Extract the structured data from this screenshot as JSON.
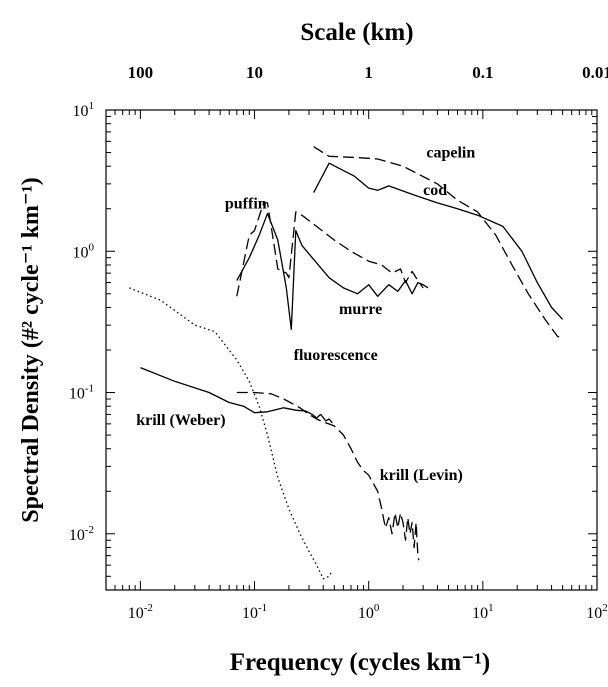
{
  "chart_data": {
    "type": "line",
    "title": "Scale (km)",
    "xlabel": "Frequency (cycles km⁻¹)",
    "ylabel": "Spectral Density (#² cycle⁻¹ km⁻¹)",
    "x_scale": "log",
    "y_scale": "log",
    "xlim": [
      0.005,
      100
    ],
    "ylim": [
      0.004,
      10
    ],
    "grid": false,
    "x_ticks": [
      {
        "value": 0.01,
        "base": "10",
        "exp": "-2"
      },
      {
        "value": 0.1,
        "base": "10",
        "exp": "-1"
      },
      {
        "value": 1,
        "base": "10",
        "exp": "0"
      },
      {
        "value": 10,
        "base": "10",
        "exp": "1"
      },
      {
        "value": 100,
        "base": "10",
        "exp": "2"
      }
    ],
    "y_ticks": [
      {
        "value": 0.01,
        "base": "10",
        "exp": "-2"
      },
      {
        "value": 0.1,
        "base": "10",
        "exp": "-1"
      },
      {
        "value": 1,
        "base": "10",
        "exp": "0"
      },
      {
        "value": 10,
        "base": "10",
        "exp": "1"
      }
    ],
    "top_axis_ticks": [
      {
        "label": "100",
        "freq": 0.01
      },
      {
        "label": "10",
        "freq": 0.1
      },
      {
        "label": "1",
        "freq": 1
      },
      {
        "label": "0.1",
        "freq": 10
      },
      {
        "label": "0.01",
        "freq": 100
      }
    ],
    "series": [
      {
        "name": "capelin",
        "style": "dashed",
        "label_pos": {
          "x": 3.2,
          "y": 4.6
        },
        "points": [
          [
            0.33,
            5.5
          ],
          [
            0.45,
            4.7
          ],
          [
            0.8,
            4.6
          ],
          [
            1.2,
            4.5
          ],
          [
            2,
            4.0
          ],
          [
            4,
            3.0
          ],
          [
            6,
            2.3
          ],
          [
            9,
            1.9
          ],
          [
            13,
            1.3
          ],
          [
            18,
            0.8
          ],
          [
            25,
            0.5
          ],
          [
            35,
            0.33
          ],
          [
            45,
            0.25
          ],
          [
            50,
            0.24
          ]
        ]
      },
      {
        "name": "cod",
        "style": "solid",
        "label_pos": {
          "x": 3.0,
          "y": 2.5
        },
        "points": [
          [
            0.33,
            2.6
          ],
          [
            0.45,
            4.2
          ],
          [
            0.75,
            3.4
          ],
          [
            1.0,
            2.8
          ],
          [
            1.2,
            2.7
          ],
          [
            1.5,
            2.9
          ],
          [
            2.5,
            2.5
          ],
          [
            4,
            2.2
          ],
          [
            6,
            2.0
          ],
          [
            9,
            1.8
          ],
          [
            15,
            1.5
          ],
          [
            22,
            1.0
          ],
          [
            30,
            0.6
          ],
          [
            40,
            0.4
          ],
          [
            50,
            0.33
          ]
        ]
      },
      {
        "name": "puffin",
        "style": "dashed",
        "label_pos": {
          "x": 0.055,
          "y": 2.0
        },
        "points": [
          [
            0.07,
            0.48
          ],
          [
            0.09,
            1.3
          ],
          [
            0.1,
            1.4
          ],
          [
            0.12,
            2.2
          ],
          [
            0.13,
            2.2
          ],
          [
            0.16,
            0.75
          ],
          [
            0.19,
            0.7
          ],
          [
            0.2,
            0.65
          ],
          [
            0.23,
            1.9
          ],
          [
            0.26,
            1.8
          ],
          [
            0.35,
            1.5
          ],
          [
            0.5,
            1.2
          ],
          [
            0.7,
            1.0
          ],
          [
            1.0,
            0.85
          ],
          [
            1.3,
            0.8
          ],
          [
            1.6,
            0.7
          ],
          [
            1.9,
            0.75
          ],
          [
            2.1,
            0.6
          ],
          [
            2.4,
            0.72
          ],
          [
            2.7,
            0.62
          ],
          [
            3.0,
            0.55
          ]
        ]
      },
      {
        "name": "murre",
        "style": "solid",
        "label_pos": {
          "x": 0.55,
          "y": 0.36
        },
        "points": [
          [
            0.07,
            0.62
          ],
          [
            0.09,
            0.9
          ],
          [
            0.11,
            1.3
          ],
          [
            0.13,
            1.85
          ],
          [
            0.16,
            1.2
          ],
          [
            0.19,
            0.55
          ],
          [
            0.21,
            0.28
          ],
          [
            0.23,
            1.4
          ],
          [
            0.26,
            1.1
          ],
          [
            0.32,
            0.9
          ],
          [
            0.45,
            0.65
          ],
          [
            0.6,
            0.55
          ],
          [
            0.8,
            0.5
          ],
          [
            1.0,
            0.58
          ],
          [
            1.2,
            0.48
          ],
          [
            1.5,
            0.58
          ],
          [
            1.8,
            0.52
          ],
          [
            2.1,
            0.62
          ],
          [
            2.4,
            0.5
          ],
          [
            2.7,
            0.6
          ],
          [
            3.0,
            0.58
          ],
          [
            3.3,
            0.55
          ]
        ]
      },
      {
        "name": "fluorescence",
        "style": "dotted",
        "label_pos": {
          "x": 0.22,
          "y": 0.17
        },
        "points": [
          [
            0.008,
            0.55
          ],
          [
            0.015,
            0.45
          ],
          [
            0.03,
            0.3
          ],
          [
            0.045,
            0.27
          ],
          [
            0.07,
            0.17
          ],
          [
            0.09,
            0.12
          ],
          [
            0.11,
            0.08
          ],
          [
            0.13,
            0.05
          ],
          [
            0.16,
            0.025
          ],
          [
            0.2,
            0.015
          ],
          [
            0.25,
            0.01
          ],
          [
            0.3,
            0.0075
          ],
          [
            0.35,
            0.006
          ],
          [
            0.4,
            0.0048
          ],
          [
            0.45,
            0.005
          ],
          [
            0.48,
            0.0055
          ]
        ]
      },
      {
        "name": "krill (Weber)",
        "style": "solid",
        "label_pos": {
          "x": 0.0092,
          "y": 0.059
        },
        "points": [
          [
            0.01,
            0.15
          ],
          [
            0.02,
            0.12
          ],
          [
            0.04,
            0.1
          ],
          [
            0.06,
            0.085
          ],
          [
            0.08,
            0.08
          ],
          [
            0.1,
            0.072
          ],
          [
            0.13,
            0.073
          ],
          [
            0.18,
            0.078
          ],
          [
            0.23,
            0.075
          ],
          [
            0.28,
            0.074
          ],
          [
            0.32,
            0.07
          ],
          [
            0.35,
            0.066
          ],
          [
            0.38,
            0.07
          ],
          [
            0.42,
            0.063
          ],
          [
            0.45,
            0.065
          ],
          [
            0.48,
            0.061
          ]
        ]
      },
      {
        "name": "krill (Levin)",
        "style": "dashed",
        "label_pos": {
          "x": 1.25,
          "y": 0.024
        },
        "points": [
          [
            0.07,
            0.1
          ],
          [
            0.1,
            0.1
          ],
          [
            0.14,
            0.098
          ],
          [
            0.18,
            0.09
          ],
          [
            0.25,
            0.078
          ],
          [
            0.3,
            0.07
          ],
          [
            0.35,
            0.065
          ],
          [
            0.4,
            0.062
          ],
          [
            0.5,
            0.058
          ],
          [
            0.6,
            0.05
          ],
          [
            0.7,
            0.04
          ],
          [
            0.8,
            0.032
          ],
          [
            0.9,
            0.028
          ],
          [
            1.0,
            0.026
          ],
          [
            1.2,
            0.02
          ],
          [
            1.3,
            0.015
          ],
          [
            1.4,
            0.011
          ],
          [
            1.5,
            0.013
          ],
          [
            1.6,
            0.01
          ],
          [
            1.7,
            0.014
          ],
          [
            1.8,
            0.011
          ],
          [
            1.9,
            0.014
          ],
          [
            2.0,
            0.012
          ],
          [
            2.1,
            0.009
          ],
          [
            2.2,
            0.013
          ],
          [
            2.3,
            0.01
          ],
          [
            2.4,
            0.012
          ],
          [
            2.5,
            0.008
          ],
          [
            2.6,
            0.012
          ],
          [
            2.7,
            0.007
          ],
          [
            2.75,
            0.0065
          ]
        ]
      }
    ]
  }
}
